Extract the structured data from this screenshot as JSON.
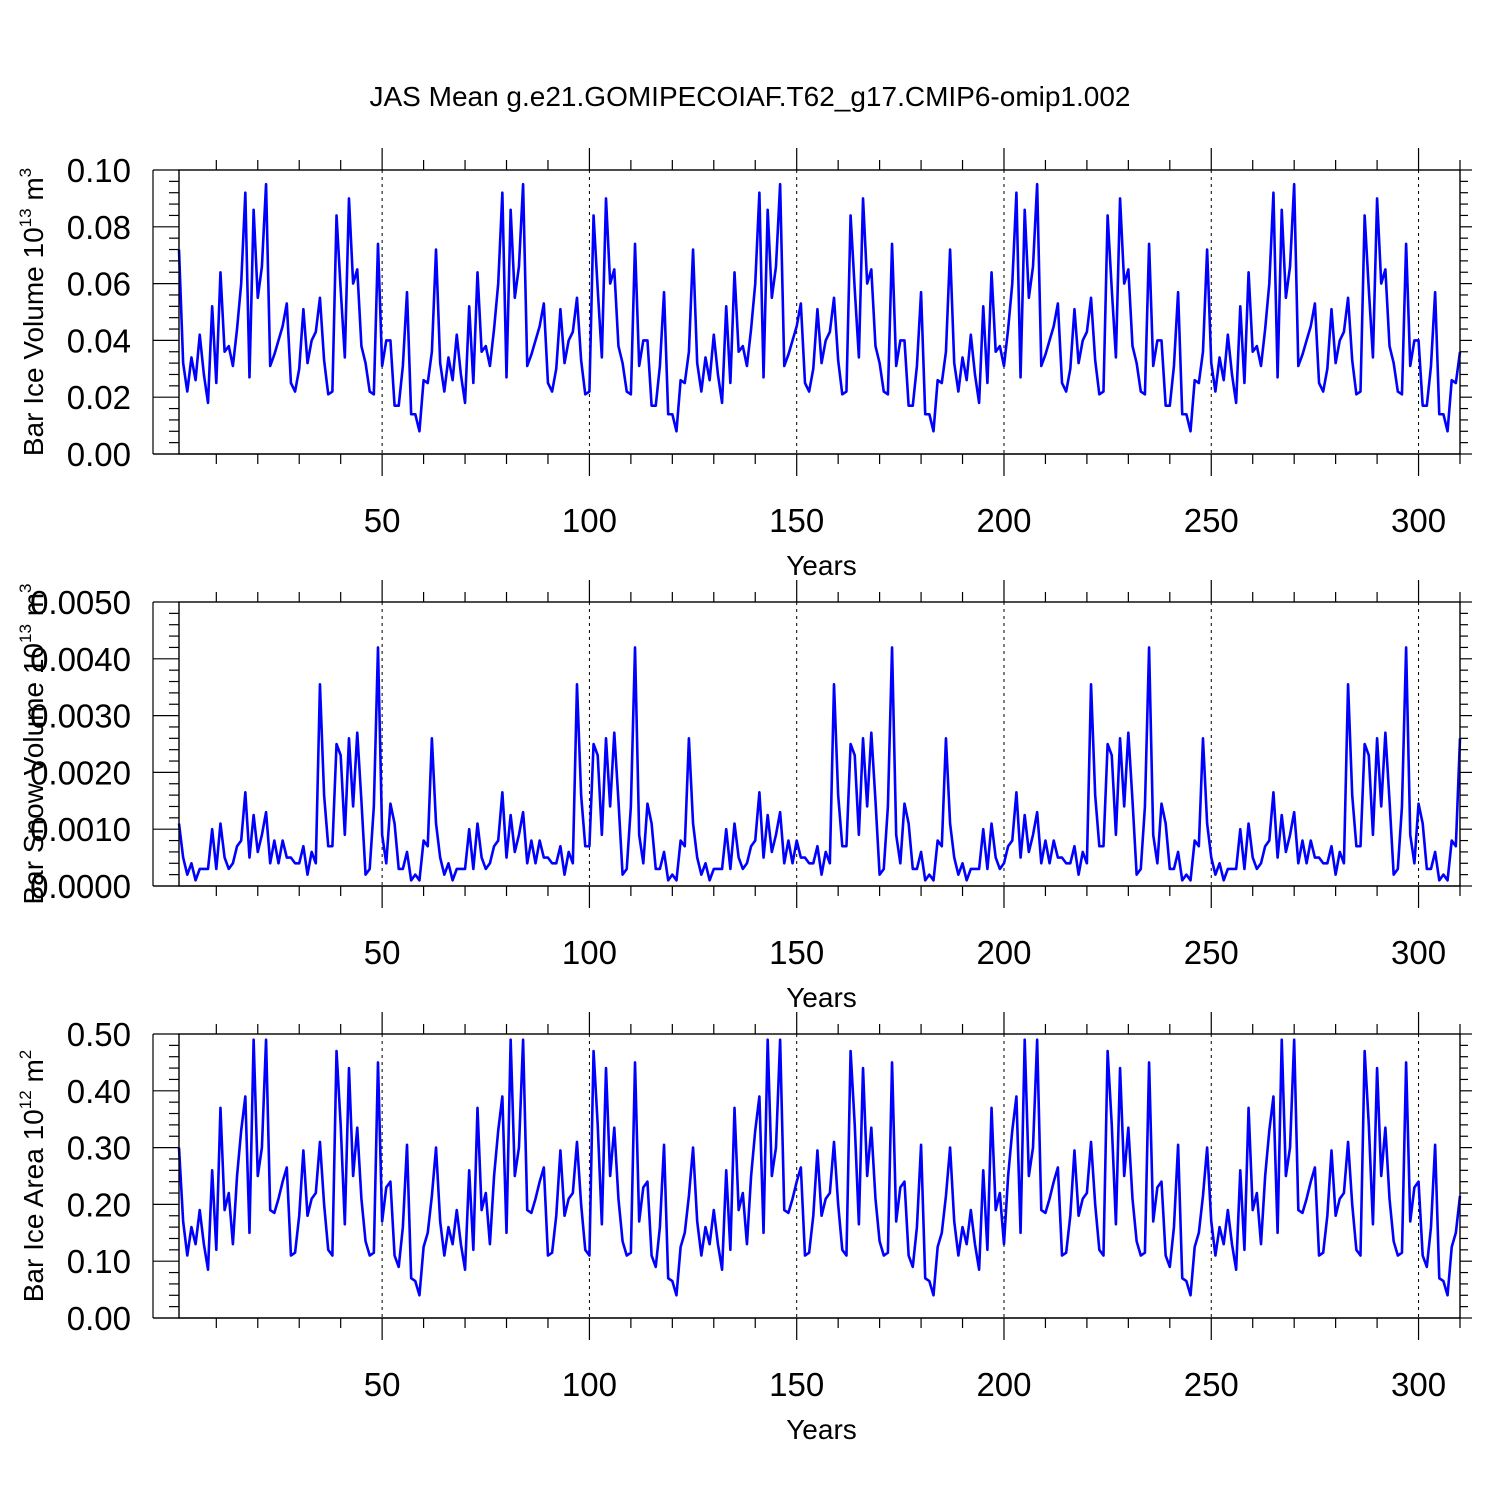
{
  "colors": {
    "series": "#0000ff",
    "axes": "#000000",
    "background": "#ffffff"
  },
  "title": "JAS Mean g.e21.GOMIPECOIAF.T62_g17.CMIP6-omip1.002",
  "chart_data": [
    {
      "type": "line",
      "xlabel": "Years",
      "ylabel_prefix": "Bar Ice Volume 10",
      "ylabel_exp": "13",
      "ylabel_unit": " m",
      "ylabel_unit_exp": "3",
      "xlim": [
        1,
        310
      ],
      "ylim": [
        0,
        0.1
      ],
      "xticks": [
        "50",
        "100",
        "150",
        "200",
        "250",
        "300"
      ],
      "yticks": [
        "0.00",
        "0.02",
        "0.04",
        "0.06",
        "0.08",
        "0.10"
      ],
      "reference_lines_x": [
        50,
        100,
        150,
        200,
        250,
        300
      ],
      "series": [
        {
          "name": "Bar Ice Volume",
          "period": 62,
          "values": [
            0.072,
            0.032,
            0.022,
            0.034,
            0.026,
            0.042,
            0.028,
            0.018,
            0.052,
            0.025,
            0.064,
            0.036,
            0.038,
            0.031,
            0.044,
            0.06,
            0.092,
            0.027,
            0.086,
            0.055,
            0.066,
            0.095,
            0.031,
            0.035,
            0.04,
            0.045,
            0.053,
            0.025,
            0.022,
            0.03,
            0.051,
            0.032,
            0.04,
            0.043,
            0.055,
            0.033,
            0.021,
            0.022,
            0.084,
            0.058,
            0.034,
            0.09,
            0.06,
            0.065,
            0.038,
            0.032,
            0.022,
            0.021,
            0.074,
            0.031,
            0.04,
            0.04,
            0.017,
            0.017,
            0.031,
            0.057,
            0.014,
            0.014,
            0.008,
            0.026,
            0.025,
            0.036
          ]
        }
      ]
    },
    {
      "type": "line",
      "xlabel": "Years",
      "ylabel_prefix": "Bar Snow Volume 10",
      "ylabel_exp": "13",
      "ylabel_unit": " m",
      "ylabel_unit_exp": "3",
      "xlim": [
        1,
        310
      ],
      "ylim": [
        0,
        0.005
      ],
      "xticks": [
        "50",
        "100",
        "150",
        "200",
        "250",
        "300"
      ],
      "yticks": [
        "0.0000",
        "0.0010",
        "0.0020",
        "0.0030",
        "0.0040",
        "0.0050"
      ],
      "reference_lines_x": [
        50,
        100,
        150,
        200,
        250,
        300
      ],
      "series": [
        {
          "name": "Bar Snow Volume",
          "period": 62,
          "values": [
            0.0011,
            0.0005,
            0.0002,
            0.0004,
            0.0001,
            0.0003,
            0.0003,
            0.0003,
            0.001,
            0.0003,
            0.0011,
            0.0005,
            0.0003,
            0.0004,
            0.0007,
            0.0008,
            0.00165,
            0.0005,
            0.00125,
            0.0006,
            0.0009,
            0.0013,
            0.0004,
            0.0008,
            0.0004,
            0.0008,
            0.0005,
            0.0005,
            0.0004,
            0.0004,
            0.0007,
            0.0002,
            0.0006,
            0.0004,
            0.00355,
            0.0016,
            0.0007,
            0.0007,
            0.0025,
            0.0023,
            0.0009,
            0.0026,
            0.0014,
            0.0027,
            0.0015,
            0.0002,
            0.0003,
            0.0014,
            0.0042,
            0.0009,
            0.0004,
            0.00145,
            0.0011,
            0.0003,
            0.0003,
            0.0006,
            0.0001,
            0.0002,
            0.0001,
            0.0008,
            0.0007,
            0.0026
          ]
        }
      ]
    },
    {
      "type": "line",
      "xlabel": "Years",
      "ylabel_prefix": "Bar Ice Area 10",
      "ylabel_exp": "12",
      "ylabel_unit": " m",
      "ylabel_unit_exp": "2",
      "xlim": [
        1,
        310
      ],
      "ylim": [
        0,
        0.5
      ],
      "xticks": [
        "50",
        "100",
        "150",
        "200",
        "250",
        "300"
      ],
      "yticks": [
        "0.00",
        "0.10",
        "0.20",
        "0.30",
        "0.40",
        "0.50"
      ],
      "reference_lines_x": [
        50,
        100,
        150,
        200,
        250,
        300
      ],
      "series": [
        {
          "name": "Bar Ice Area",
          "period": 62,
          "values": [
            0.3,
            0.17,
            0.11,
            0.16,
            0.13,
            0.19,
            0.13,
            0.085,
            0.26,
            0.12,
            0.37,
            0.19,
            0.22,
            0.13,
            0.25,
            0.33,
            0.39,
            0.15,
            0.49,
            0.25,
            0.3,
            0.49,
            0.19,
            0.185,
            0.21,
            0.24,
            0.265,
            0.11,
            0.115,
            0.18,
            0.295,
            0.18,
            0.21,
            0.22,
            0.31,
            0.2,
            0.12,
            0.11,
            0.47,
            0.34,
            0.165,
            0.44,
            0.25,
            0.335,
            0.21,
            0.135,
            0.11,
            0.115,
            0.45,
            0.17,
            0.23,
            0.24,
            0.11,
            0.09,
            0.16,
            0.305,
            0.07,
            0.065,
            0.04,
            0.125,
            0.15,
            0.215
          ]
        }
      ]
    }
  ]
}
